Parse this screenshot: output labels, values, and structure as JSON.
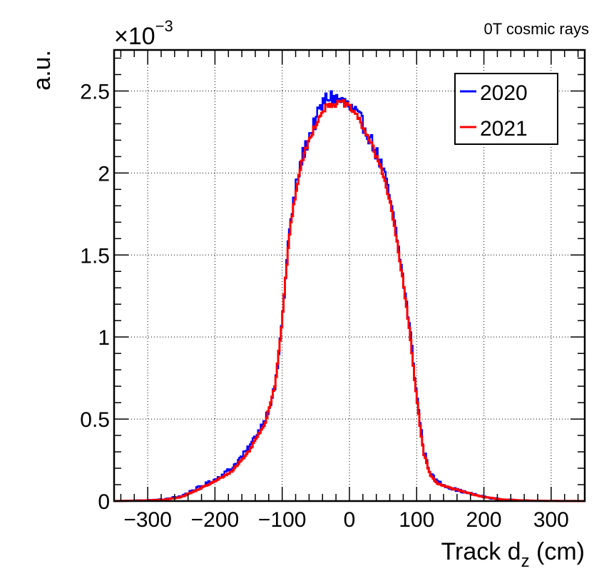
{
  "chart_data": {
    "type": "line",
    "title": "0T cosmic rays",
    "xlabel_main": "Track d",
    "xlabel_sub": "z",
    "xlabel_unit": " (cm)",
    "ylabel": "a.u.",
    "y_multiplier_base": "×10",
    "y_multiplier_exp": "−3",
    "xlim": [
      -350,
      350
    ],
    "ylim": [
      0,
      2.75
    ],
    "x_ticks": [
      -300,
      -200,
      -100,
      0,
      100,
      200,
      300
    ],
    "x_tick_labels": [
      "−300",
      "−200",
      "−100",
      "0",
      "100",
      "200",
      "300"
    ],
    "y_ticks": [
      0,
      0.5,
      1,
      1.5,
      2,
      2.5
    ],
    "y_tick_labels": [
      "0",
      "0.5",
      "1",
      "1.5",
      "2",
      "2.5"
    ],
    "grid": true,
    "legend_position": "top-right",
    "series": [
      {
        "name": "2020",
        "color": "#0000ff",
        "x": [
          -350,
          -300,
          -275,
          -250,
          -225,
          -200,
          -175,
          -150,
          -125,
          -110,
          -100,
          -90,
          -80,
          -70,
          -60,
          -50,
          -40,
          -30,
          -20,
          -10,
          0,
          10,
          20,
          30,
          40,
          50,
          60,
          70,
          80,
          90,
          100,
          110,
          120,
          130,
          150,
          175,
          200,
          225,
          250,
          275,
          300,
          350
        ],
        "y": [
          0,
          0.005,
          0.01,
          0.03,
          0.08,
          0.13,
          0.2,
          0.32,
          0.5,
          0.7,
          1.1,
          1.62,
          1.9,
          2.1,
          2.22,
          2.32,
          2.42,
          2.47,
          2.45,
          2.44,
          2.4,
          2.36,
          2.3,
          2.22,
          2.12,
          2.02,
          1.85,
          1.62,
          1.35,
          1.05,
          0.65,
          0.32,
          0.17,
          0.12,
          0.08,
          0.05,
          0.025,
          0.01,
          0.005,
          0.002,
          0.001,
          0
        ]
      },
      {
        "name": "2021",
        "color": "#ff0000",
        "x": [
          -350,
          -300,
          -275,
          -250,
          -225,
          -200,
          -175,
          -150,
          -125,
          -110,
          -100,
          -90,
          -80,
          -70,
          -60,
          -50,
          -40,
          -30,
          -20,
          -10,
          0,
          10,
          20,
          30,
          40,
          50,
          60,
          70,
          80,
          90,
          100,
          110,
          120,
          130,
          150,
          175,
          200,
          225,
          250,
          275,
          300,
          350
        ],
        "y": [
          0,
          0.004,
          0.008,
          0.025,
          0.07,
          0.12,
          0.18,
          0.3,
          0.48,
          0.72,
          1.1,
          1.6,
          1.88,
          2.08,
          2.2,
          2.3,
          2.38,
          2.42,
          2.42,
          2.43,
          2.4,
          2.36,
          2.28,
          2.2,
          2.1,
          2.0,
          1.83,
          1.6,
          1.33,
          1.02,
          0.63,
          0.3,
          0.16,
          0.11,
          0.08,
          0.05,
          0.025,
          0.01,
          0.005,
          0.002,
          0.001,
          0
        ]
      }
    ]
  }
}
